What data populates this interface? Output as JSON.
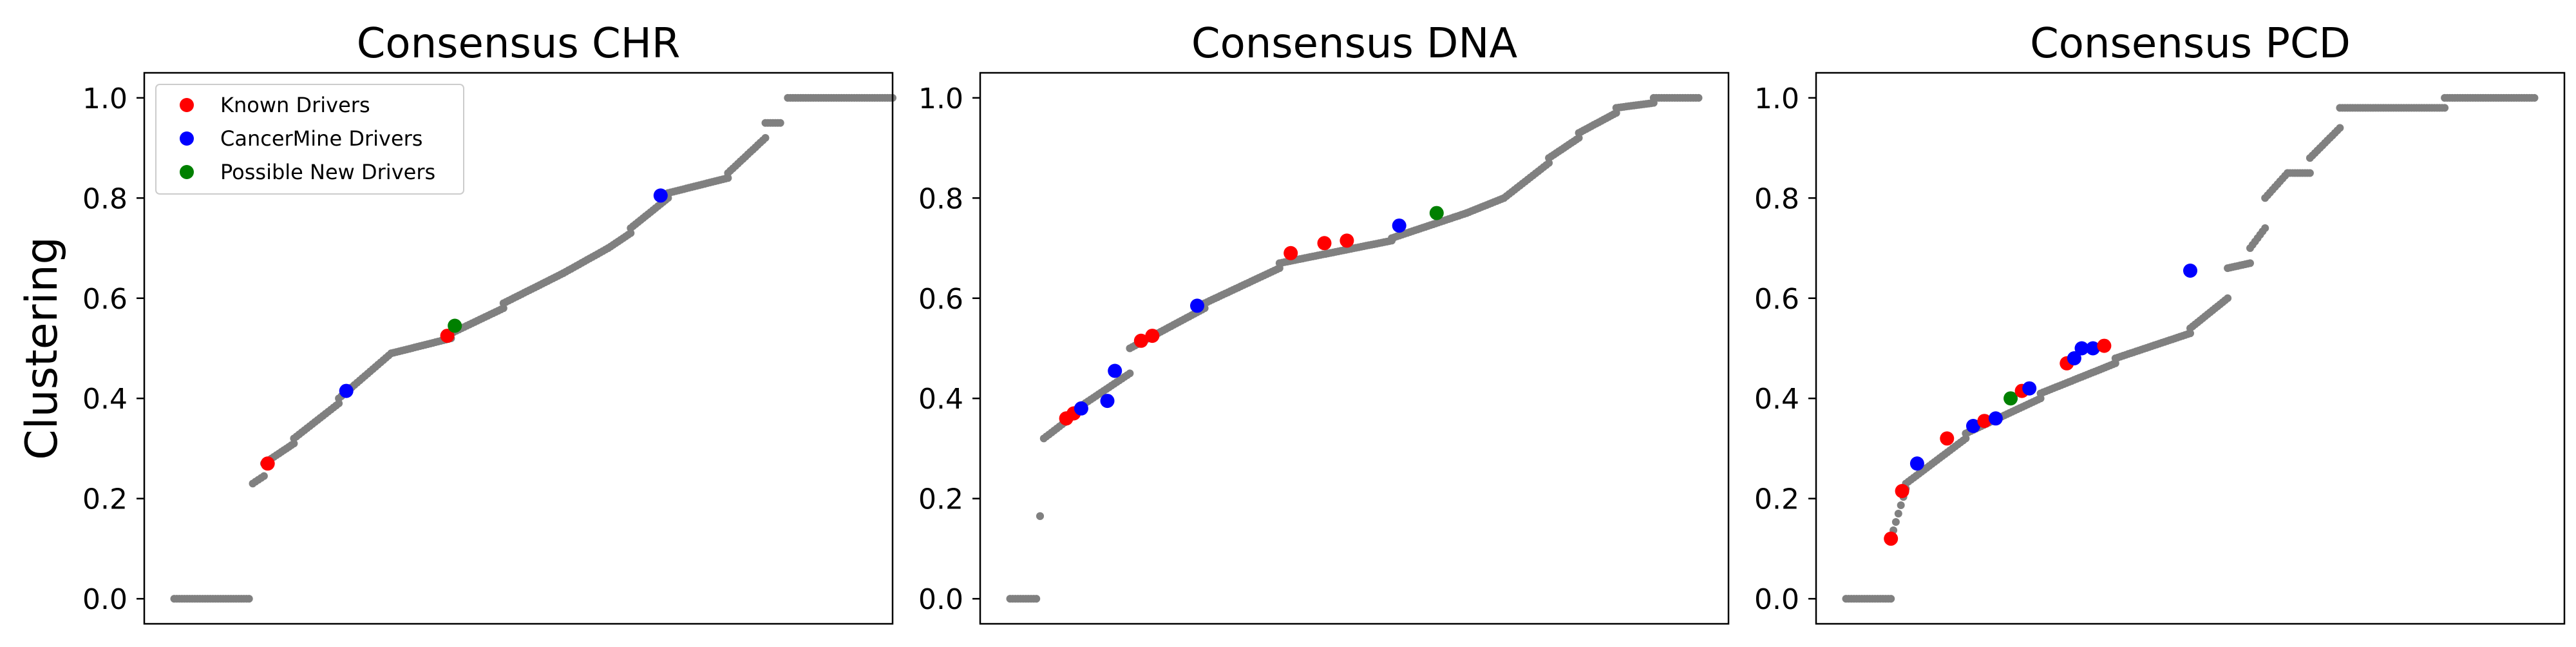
{
  "figure": {
    "ylabel": "Clustering"
  },
  "colors": {
    "background_points": "#808080",
    "known": "#ff0000",
    "cancermine": "#0000ff",
    "possible_new": "#008000"
  },
  "legend": {
    "placement": "top-left of first panel",
    "entries": [
      {
        "label": "Known Drivers",
        "color": "#ff0000"
      },
      {
        "label": "CancerMine Drivers",
        "color": "#0000ff"
      },
      {
        "label": "Possible New Drivers",
        "color": "#008000"
      }
    ]
  },
  "chart_data": [
    {
      "type": "scatter",
      "title": "Consensus CHR",
      "ylabel": "Clustering",
      "xlabel": "",
      "ylim": [
        -0.05,
        1.05
      ],
      "yticks": [
        "0.0",
        "0.2",
        "0.4",
        "0.6",
        "0.8",
        "1.0"
      ],
      "x_ticks_shown": false,
      "grid": false,
      "segments": [
        {
          "x0": 0.04,
          "x1": 0.14,
          "y0": 0.0,
          "y1": 0.0
        },
        {
          "x0": 0.145,
          "x1": 0.16,
          "y0": 0.23,
          "y1": 0.245
        },
        {
          "x0": 0.16,
          "x1": 0.2,
          "y0": 0.27,
          "y1": 0.31
        },
        {
          "x0": 0.2,
          "x1": 0.26,
          "y0": 0.32,
          "y1": 0.39
        },
        {
          "x0": 0.26,
          "x1": 0.33,
          "y0": 0.4,
          "y1": 0.49
        },
        {
          "x0": 0.33,
          "x1": 0.41,
          "y0": 0.49,
          "y1": 0.52
        },
        {
          "x0": 0.41,
          "x1": 0.48,
          "y0": 0.53,
          "y1": 0.58
        },
        {
          "x0": 0.48,
          "x1": 0.56,
          "y0": 0.59,
          "y1": 0.65
        },
        {
          "x0": 0.56,
          "x1": 0.62,
          "y0": 0.65,
          "y1": 0.7
        },
        {
          "x0": 0.62,
          "x1": 0.65,
          "y0": 0.7,
          "y1": 0.73
        },
        {
          "x0": 0.65,
          "x1": 0.7,
          "y0": 0.74,
          "y1": 0.8
        },
        {
          "x0": 0.7,
          "x1": 0.78,
          "y0": 0.81,
          "y1": 0.84
        },
        {
          "x0": 0.78,
          "x1": 0.83,
          "y0": 0.85,
          "y1": 0.92
        },
        {
          "x0": 0.83,
          "x1": 0.85,
          "y0": 0.95,
          "y1": 0.95
        },
        {
          "x0": 0.86,
          "x1": 1.0,
          "y0": 1.0,
          "y1": 1.0
        }
      ],
      "highlights": [
        {
          "x": 0.165,
          "y": 0.27,
          "kind": "known"
        },
        {
          "x": 0.27,
          "y": 0.415,
          "kind": "cancermine"
        },
        {
          "x": 0.405,
          "y": 0.525,
          "kind": "known"
        },
        {
          "x": 0.415,
          "y": 0.545,
          "kind": "possible_new"
        },
        {
          "x": 0.69,
          "y": 0.805,
          "kind": "cancermine"
        }
      ]
    },
    {
      "type": "scatter",
      "title": "Consensus DNA",
      "ylabel": "",
      "xlabel": "",
      "ylim": [
        -0.05,
        1.05
      ],
      "yticks": [
        "0.0",
        "0.2",
        "0.4",
        "0.6",
        "0.8",
        "1.0"
      ],
      "x_ticks_shown": false,
      "grid": false,
      "segments": [
        {
          "x0": 0.04,
          "x1": 0.075,
          "y0": 0.0,
          "y1": 0.0
        },
        {
          "x0": 0.08,
          "x1": 0.08,
          "y0": 0.165,
          "y1": 0.165
        },
        {
          "x0": 0.085,
          "x1": 0.12,
          "y0": 0.32,
          "y1": 0.36
        },
        {
          "x0": 0.12,
          "x1": 0.2,
          "y0": 0.37,
          "y1": 0.45
        },
        {
          "x0": 0.2,
          "x1": 0.3,
          "y0": 0.5,
          "y1": 0.58
        },
        {
          "x0": 0.3,
          "x1": 0.4,
          "y0": 0.59,
          "y1": 0.66
        },
        {
          "x0": 0.4,
          "x1": 0.55,
          "y0": 0.67,
          "y1": 0.715
        },
        {
          "x0": 0.55,
          "x1": 0.65,
          "y0": 0.72,
          "y1": 0.77
        },
        {
          "x0": 0.65,
          "x1": 0.7,
          "y0": 0.77,
          "y1": 0.8
        },
        {
          "x0": 0.7,
          "x1": 0.76,
          "y0": 0.8,
          "y1": 0.87
        },
        {
          "x0": 0.76,
          "x1": 0.8,
          "y0": 0.88,
          "y1": 0.92
        },
        {
          "x0": 0.8,
          "x1": 0.85,
          "y0": 0.93,
          "y1": 0.97
        },
        {
          "x0": 0.85,
          "x1": 0.9,
          "y0": 0.98,
          "y1": 0.99
        },
        {
          "x0": 0.9,
          "x1": 0.96,
          "y0": 1.0,
          "y1": 1.0
        }
      ],
      "highlights": [
        {
          "x": 0.115,
          "y": 0.36,
          "kind": "known"
        },
        {
          "x": 0.125,
          "y": 0.37,
          "kind": "known"
        },
        {
          "x": 0.135,
          "y": 0.38,
          "kind": "cancermine"
        },
        {
          "x": 0.17,
          "y": 0.395,
          "kind": "cancermine"
        },
        {
          "x": 0.18,
          "y": 0.455,
          "kind": "cancermine"
        },
        {
          "x": 0.215,
          "y": 0.515,
          "kind": "known"
        },
        {
          "x": 0.23,
          "y": 0.525,
          "kind": "known"
        },
        {
          "x": 0.29,
          "y": 0.585,
          "kind": "cancermine"
        },
        {
          "x": 0.415,
          "y": 0.69,
          "kind": "known"
        },
        {
          "x": 0.46,
          "y": 0.71,
          "kind": "known"
        },
        {
          "x": 0.49,
          "y": 0.715,
          "kind": "known"
        },
        {
          "x": 0.56,
          "y": 0.745,
          "kind": "cancermine"
        },
        {
          "x": 0.61,
          "y": 0.77,
          "kind": "possible_new"
        }
      ]
    },
    {
      "type": "scatter",
      "title": "Consensus PCD",
      "ylabel": "",
      "xlabel": "",
      "ylim": [
        -0.05,
        1.05
      ],
      "yticks": [
        "0.0",
        "0.2",
        "0.4",
        "0.6",
        "0.8",
        "1.0"
      ],
      "x_ticks_shown": false,
      "grid": false,
      "segments": [
        {
          "x0": 0.04,
          "x1": 0.1,
          "y0": 0.0,
          "y1": 0.0
        },
        {
          "x0": 0.1,
          "x1": 0.12,
          "y0": 0.12,
          "y1": 0.22
        },
        {
          "x0": 0.12,
          "x1": 0.2,
          "y0": 0.23,
          "y1": 0.32
        },
        {
          "x0": 0.2,
          "x1": 0.3,
          "y0": 0.33,
          "y1": 0.4
        },
        {
          "x0": 0.3,
          "x1": 0.4,
          "y0": 0.41,
          "y1": 0.47
        },
        {
          "x0": 0.4,
          "x1": 0.5,
          "y0": 0.48,
          "y1": 0.53
        },
        {
          "x0": 0.5,
          "x1": 0.55,
          "y0": 0.54,
          "y1": 0.6
        },
        {
          "x0": 0.55,
          "x1": 0.58,
          "y0": 0.66,
          "y1": 0.67
        },
        {
          "x0": 0.58,
          "x1": 0.6,
          "y0": 0.7,
          "y1": 0.74
        },
        {
          "x0": 0.6,
          "x1": 0.63,
          "y0": 0.8,
          "y1": 0.85
        },
        {
          "x0": 0.63,
          "x1": 0.66,
          "y0": 0.85,
          "y1": 0.85
        },
        {
          "x0": 0.66,
          "x1": 0.7,
          "y0": 0.88,
          "y1": 0.94
        },
        {
          "x0": 0.7,
          "x1": 0.84,
          "y0": 0.98,
          "y1": 0.98
        },
        {
          "x0": 0.84,
          "x1": 0.96,
          "y0": 1.0,
          "y1": 1.0
        }
      ],
      "highlights": [
        {
          "x": 0.1,
          "y": 0.12,
          "kind": "known"
        },
        {
          "x": 0.115,
          "y": 0.215,
          "kind": "known"
        },
        {
          "x": 0.135,
          "y": 0.27,
          "kind": "cancermine"
        },
        {
          "x": 0.175,
          "y": 0.32,
          "kind": "known"
        },
        {
          "x": 0.21,
          "y": 0.345,
          "kind": "cancermine"
        },
        {
          "x": 0.225,
          "y": 0.355,
          "kind": "known"
        },
        {
          "x": 0.24,
          "y": 0.36,
          "kind": "cancermine"
        },
        {
          "x": 0.26,
          "y": 0.4,
          "kind": "possible_new"
        },
        {
          "x": 0.275,
          "y": 0.415,
          "kind": "known"
        },
        {
          "x": 0.285,
          "y": 0.42,
          "kind": "cancermine"
        },
        {
          "x": 0.335,
          "y": 0.47,
          "kind": "known"
        },
        {
          "x": 0.345,
          "y": 0.48,
          "kind": "cancermine"
        },
        {
          "x": 0.355,
          "y": 0.5,
          "kind": "cancermine"
        },
        {
          "x": 0.37,
          "y": 0.5,
          "kind": "cancermine"
        },
        {
          "x": 0.385,
          "y": 0.505,
          "kind": "known"
        },
        {
          "x": 0.5,
          "y": 0.655,
          "kind": "cancermine"
        }
      ]
    }
  ]
}
